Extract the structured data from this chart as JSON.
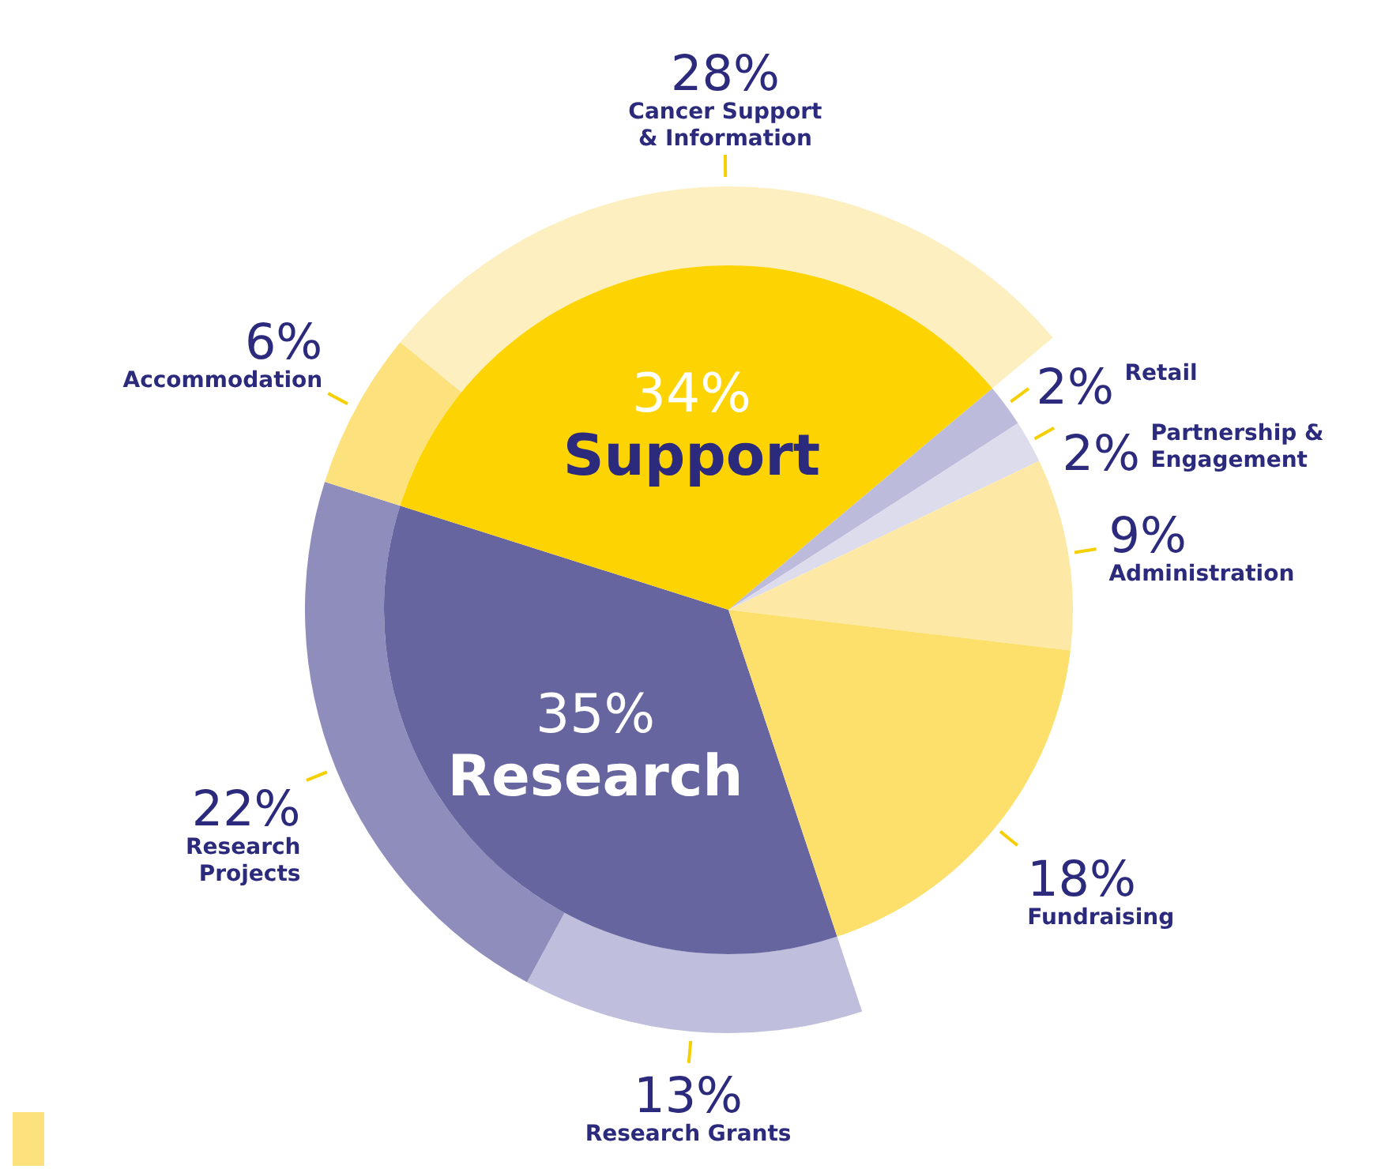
{
  "chart_data": [
    {
      "type": "pie",
      "categories": [
        "Research",
        "Support",
        "Retail",
        "Partnership & Engagement",
        "Administration",
        "Fundraising"
      ],
      "values": [
        35,
        34,
        2,
        2,
        9,
        18
      ],
      "value_labels": [
        "35%",
        "34%",
        "2%",
        "2%",
        "9%",
        "18%"
      ],
      "colors": [
        "#67659f",
        "#fdd302",
        "#bcbbdc",
        "#dddcec",
        "#fde9a5",
        "#fddf6b"
      ]
    },
    {
      "type": "donut",
      "categories": [
        "Research Grants",
        "Research Projects",
        "Accommodation",
        "Cancer Support & Information"
      ],
      "values": [
        13,
        22,
        6,
        28
      ],
      "value_labels": [
        "13%",
        "22%",
        "6%",
        "28%"
      ],
      "colors": [
        "#bfbedc",
        "#8f8dbb",
        "#fde17c",
        "#fdefc0"
      ]
    }
  ]
}
